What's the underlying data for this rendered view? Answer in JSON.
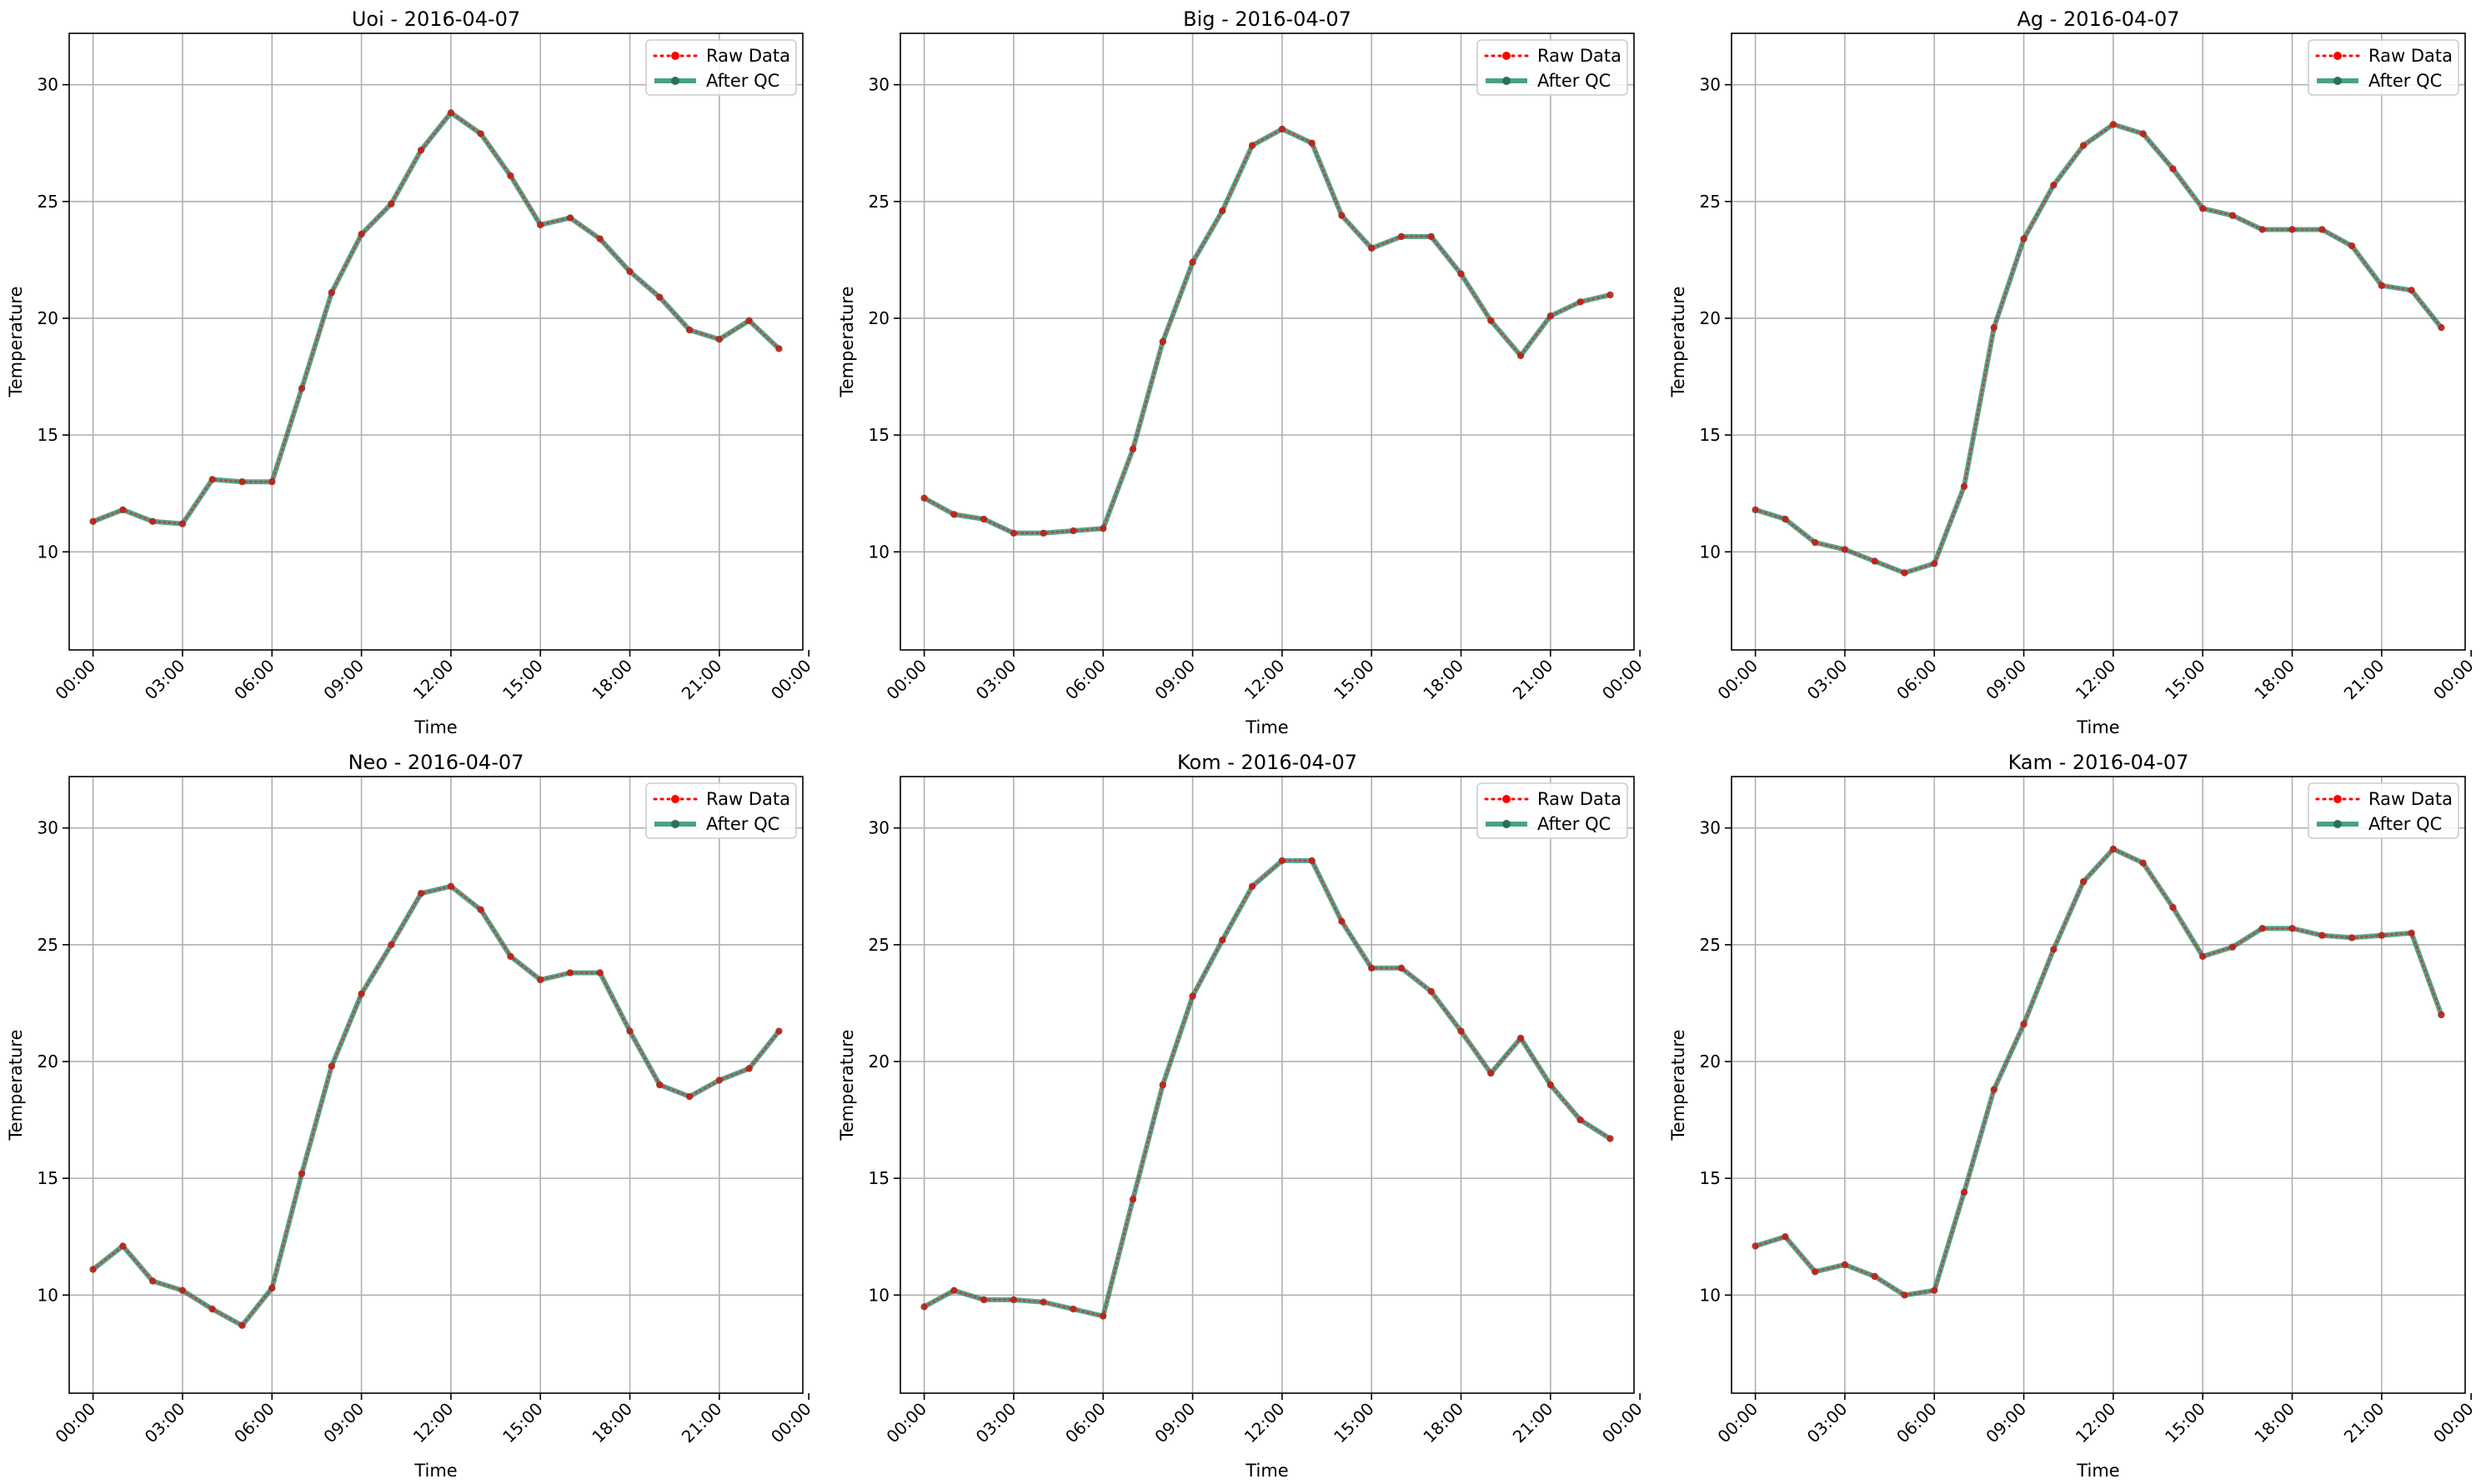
{
  "colors": {
    "raw": "#ff0000",
    "qc": "#1a8a6a",
    "marker": "#2f6e56",
    "grid": "#b0b0b0",
    "axis": "#000000",
    "legend_border": "#cccccc"
  },
  "chart_data": [
    {
      "type": "line",
      "title": "Uoi - 2016-04-07",
      "xlabel": "Time",
      "ylabel": "Temperature",
      "ylim": [
        5.8,
        32.2
      ],
      "xlim": [
        -0.8,
        23.8
      ],
      "grid": true,
      "legend_placement": "top-right",
      "yticks": [
        10,
        15,
        20,
        25,
        30
      ],
      "xticks": [
        0,
        3,
        6,
        9,
        12,
        15,
        18,
        21,
        24
      ],
      "xtick_labels": [
        "00:00",
        "03:00",
        "06:00",
        "09:00",
        "12:00",
        "15:00",
        "18:00",
        "21:00",
        "00:00"
      ],
      "x": [
        0,
        1,
        2,
        3,
        4,
        5,
        6,
        7,
        8,
        9,
        10,
        11,
        12,
        13,
        14,
        15,
        16,
        17,
        18,
        19,
        20,
        21,
        22,
        23
      ],
      "series": [
        {
          "name": "Raw Data",
          "values": [
            11.3,
            11.8,
            11.3,
            11.2,
            13.1,
            13.0,
            13.0,
            17.0,
            21.1,
            23.6,
            24.9,
            27.2,
            28.8,
            27.9,
            26.1,
            24.0,
            24.3,
            23.4,
            22.0,
            20.9,
            19.5,
            19.1,
            19.9,
            18.7
          ]
        },
        {
          "name": "After QC",
          "values": [
            11.3,
            11.8,
            11.3,
            11.2,
            13.1,
            13.0,
            13.0,
            17.0,
            21.1,
            23.6,
            24.9,
            27.2,
            28.8,
            27.9,
            26.1,
            24.0,
            24.3,
            23.4,
            22.0,
            20.9,
            19.5,
            19.1,
            19.9,
            18.7
          ]
        }
      ]
    },
    {
      "type": "line",
      "title": "Big - 2016-04-07",
      "xlabel": "Time",
      "ylabel": "Temperature",
      "ylim": [
        5.8,
        32.2
      ],
      "xlim": [
        -0.8,
        23.8
      ],
      "grid": true,
      "legend_placement": "top-right",
      "yticks": [
        10,
        15,
        20,
        25,
        30
      ],
      "xticks": [
        0,
        3,
        6,
        9,
        12,
        15,
        18,
        21,
        24
      ],
      "xtick_labels": [
        "00:00",
        "03:00",
        "06:00",
        "09:00",
        "12:00",
        "15:00",
        "18:00",
        "21:00",
        "00:00"
      ],
      "x": [
        0,
        1,
        2,
        3,
        4,
        5,
        6,
        7,
        8,
        9,
        10,
        11,
        12,
        13,
        14,
        15,
        16,
        17,
        18,
        19,
        20,
        21,
        22,
        23
      ],
      "series": [
        {
          "name": "Raw Data",
          "values": [
            12.3,
            11.6,
            11.4,
            10.8,
            10.8,
            10.9,
            11.0,
            14.4,
            19.0,
            22.4,
            24.6,
            27.4,
            28.1,
            27.5,
            24.4,
            23.0,
            23.5,
            23.5,
            21.9,
            19.9,
            18.4,
            20.1,
            20.7,
            21.0
          ]
        },
        {
          "name": "After QC",
          "values": [
            12.3,
            11.6,
            11.4,
            10.8,
            10.8,
            10.9,
            11.0,
            14.4,
            19.0,
            22.4,
            24.6,
            27.4,
            28.1,
            27.5,
            24.4,
            23.0,
            23.5,
            23.5,
            21.9,
            19.9,
            18.4,
            20.1,
            20.7,
            21.0
          ]
        }
      ]
    },
    {
      "type": "line",
      "title": "Ag - 2016-04-07",
      "xlabel": "Time",
      "ylabel": "Temperature",
      "ylim": [
        5.8,
        32.2
      ],
      "xlim": [
        -0.8,
        23.8
      ],
      "grid": true,
      "legend_placement": "top-right",
      "yticks": [
        10,
        15,
        20,
        25,
        30
      ],
      "xticks": [
        0,
        3,
        6,
        9,
        12,
        15,
        18,
        21,
        24
      ],
      "xtick_labels": [
        "00:00",
        "03:00",
        "06:00",
        "09:00",
        "12:00",
        "15:00",
        "18:00",
        "21:00",
        "00:00"
      ],
      "x": [
        0,
        1,
        2,
        3,
        4,
        5,
        6,
        7,
        8,
        9,
        10,
        11,
        12,
        13,
        14,
        15,
        16,
        17,
        18,
        19,
        20,
        21,
        22,
        23
      ],
      "series": [
        {
          "name": "Raw Data",
          "values": [
            11.8,
            11.4,
            10.4,
            10.1,
            9.6,
            9.1,
            9.5,
            12.8,
            19.6,
            23.4,
            25.7,
            27.4,
            28.3,
            27.9,
            26.4,
            24.7,
            24.4,
            23.8,
            23.8,
            23.8,
            23.1,
            21.4,
            21.2,
            19.6
          ]
        },
        {
          "name": "After QC",
          "values": [
            11.8,
            11.4,
            10.4,
            10.1,
            9.6,
            9.1,
            9.5,
            12.8,
            19.6,
            23.4,
            25.7,
            27.4,
            28.3,
            27.9,
            26.4,
            24.7,
            24.4,
            23.8,
            23.8,
            23.8,
            23.1,
            21.4,
            21.2,
            19.6
          ]
        }
      ]
    },
    {
      "type": "line",
      "title": "Neo - 2016-04-07",
      "xlabel": "Time",
      "ylabel": "Temperature",
      "ylim": [
        5.8,
        32.2
      ],
      "xlim": [
        -0.8,
        23.8
      ],
      "grid": true,
      "legend_placement": "top-right",
      "yticks": [
        10,
        15,
        20,
        25,
        30
      ],
      "xticks": [
        0,
        3,
        6,
        9,
        12,
        15,
        18,
        21,
        24
      ],
      "xtick_labels": [
        "00:00",
        "03:00",
        "06:00",
        "09:00",
        "12:00",
        "15:00",
        "18:00",
        "21:00",
        "00:00"
      ],
      "x": [
        0,
        1,
        2,
        3,
        4,
        5,
        6,
        7,
        8,
        9,
        10,
        11,
        12,
        13,
        14,
        15,
        16,
        17,
        18,
        19,
        20,
        21,
        22,
        23
      ],
      "series": [
        {
          "name": "Raw Data",
          "values": [
            11.1,
            12.1,
            10.6,
            10.2,
            9.4,
            8.7,
            10.3,
            15.2,
            19.8,
            22.9,
            25.0,
            27.2,
            27.5,
            26.5,
            24.5,
            23.5,
            23.8,
            23.8,
            21.3,
            19.0,
            18.5,
            19.2,
            19.7,
            21.3
          ]
        },
        {
          "name": "After QC",
          "values": [
            11.1,
            12.1,
            10.6,
            10.2,
            9.4,
            8.7,
            10.3,
            15.2,
            19.8,
            22.9,
            25.0,
            27.2,
            27.5,
            26.5,
            24.5,
            23.5,
            23.8,
            23.8,
            21.3,
            19.0,
            18.5,
            19.2,
            19.7,
            21.3
          ]
        }
      ]
    },
    {
      "type": "line",
      "title": "Kom - 2016-04-07",
      "xlabel": "Time",
      "ylabel": "Temperature",
      "ylim": [
        5.8,
        32.2
      ],
      "xlim": [
        -0.8,
        23.8
      ],
      "grid": true,
      "legend_placement": "top-right",
      "yticks": [
        10,
        15,
        20,
        25,
        30
      ],
      "xticks": [
        0,
        3,
        6,
        9,
        12,
        15,
        18,
        21,
        24
      ],
      "xtick_labels": [
        "00:00",
        "03:00",
        "06:00",
        "09:00",
        "12:00",
        "15:00",
        "18:00",
        "21:00",
        "00:00"
      ],
      "x": [
        0,
        1,
        2,
        3,
        4,
        5,
        6,
        7,
        8,
        9,
        10,
        11,
        12,
        13,
        14,
        15,
        16,
        17,
        18,
        19,
        20,
        21,
        22,
        23
      ],
      "series": [
        {
          "name": "Raw Data",
          "values": [
            9.5,
            10.2,
            9.8,
            9.8,
            9.7,
            9.4,
            9.1,
            14.1,
            19.0,
            22.8,
            25.2,
            27.5,
            28.6,
            28.6,
            26.0,
            24.0,
            24.0,
            23.0,
            21.3,
            19.5,
            21.0,
            19.0,
            17.5,
            16.7
          ]
        },
        {
          "name": "After QC",
          "values": [
            9.5,
            10.2,
            9.8,
            9.8,
            9.7,
            9.4,
            9.1,
            14.1,
            19.0,
            22.8,
            25.2,
            27.5,
            28.6,
            28.6,
            26.0,
            24.0,
            24.0,
            23.0,
            21.3,
            19.5,
            21.0,
            19.0,
            17.5,
            16.7
          ]
        }
      ]
    },
    {
      "type": "line",
      "title": "Kam - 2016-04-07",
      "xlabel": "Time",
      "ylabel": "Temperature",
      "ylim": [
        5.8,
        32.2
      ],
      "xlim": [
        -0.8,
        23.8
      ],
      "grid": true,
      "legend_placement": "top-right",
      "yticks": [
        10,
        15,
        20,
        25,
        30
      ],
      "xticks": [
        0,
        3,
        6,
        9,
        12,
        15,
        18,
        21,
        24
      ],
      "xtick_labels": [
        "00:00",
        "03:00",
        "06:00",
        "09:00",
        "12:00",
        "15:00",
        "18:00",
        "21:00",
        "00:00"
      ],
      "x": [
        0,
        1,
        2,
        3,
        4,
        5,
        6,
        7,
        8,
        9,
        10,
        11,
        12,
        13,
        14,
        15,
        16,
        17,
        18,
        19,
        20,
        21,
        22,
        23
      ],
      "series": [
        {
          "name": "Raw Data",
          "values": [
            12.1,
            12.5,
            11.0,
            11.3,
            10.8,
            10.0,
            10.2,
            14.4,
            18.8,
            21.6,
            24.8,
            27.7,
            29.1,
            28.5,
            26.6,
            24.5,
            24.9,
            25.7,
            25.7,
            25.4,
            25.3,
            25.4,
            25.5,
            22.0
          ]
        },
        {
          "name": "After QC",
          "values": [
            12.1,
            12.5,
            11.0,
            11.3,
            10.8,
            10.0,
            10.2,
            14.4,
            18.8,
            21.6,
            24.8,
            27.7,
            29.1,
            28.5,
            26.6,
            24.5,
            24.9,
            25.7,
            25.7,
            25.4,
            25.3,
            25.4,
            25.5,
            22.0
          ]
        }
      ]
    }
  ]
}
